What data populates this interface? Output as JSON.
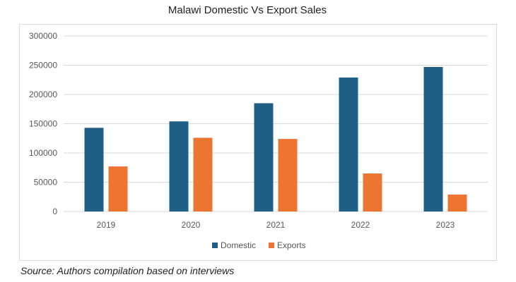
{
  "title": "Malawi Domestic Vs Export Sales",
  "source": "Source: Authors compilation based on interviews",
  "colors": {
    "domestic": "#1f5f86",
    "exports": "#ec7631",
    "grid": "#d9d9d9",
    "text": "#595959"
  },
  "chart_data": {
    "type": "bar",
    "title": "Malawi Domestic Vs Export Sales",
    "categories": [
      "2019",
      "2020",
      "2021",
      "2022",
      "2023"
    ],
    "series": [
      {
        "name": "Domestic",
        "values": [
          143000,
          154000,
          185000,
          229000,
          247000
        ]
      },
      {
        "name": "Exports",
        "values": [
          77000,
          126000,
          124000,
          65000,
          29000
        ]
      }
    ],
    "ylim": [
      0,
      300000
    ],
    "yticks": [
      "0",
      "50000",
      "100000",
      "150000",
      "200000",
      "250000",
      "300000"
    ],
    "xlabel": "",
    "ylabel": "",
    "grid": true,
    "legend": "bottom"
  }
}
